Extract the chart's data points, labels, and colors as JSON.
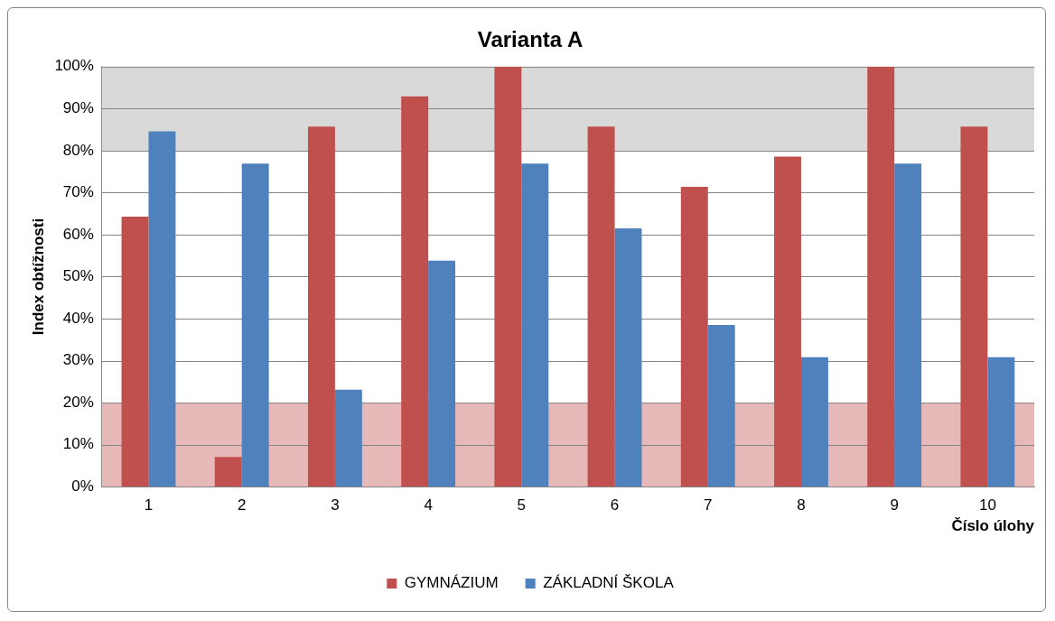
{
  "chart_data": {
    "type": "bar",
    "title": "Varianta A",
    "xlabel": "Číslo úlohy",
    "ylabel": "Index obtížnosti",
    "categories": [
      "1",
      "2",
      "3",
      "4",
      "5",
      "6",
      "7",
      "8",
      "9",
      "10"
    ],
    "series": [
      {
        "name": "GYMNÁZIUM",
        "color": "#c0504d",
        "values": [
          64.3,
          7.1,
          85.7,
          92.9,
          100,
          85.7,
          71.4,
          78.6,
          100,
          85.7
        ]
      },
      {
        "name": "ZÁKLADNÍ ŠKOLA",
        "color": "#4f81bd",
        "values": [
          84.6,
          76.9,
          23.1,
          53.8,
          76.9,
          61.5,
          38.5,
          30.8,
          76.9,
          30.8
        ]
      }
    ],
    "ylim": [
      0,
      100
    ],
    "yticks": [
      {
        "value": 0,
        "label": "0%"
      },
      {
        "value": 10,
        "label": "10%"
      },
      {
        "value": 20,
        "label": "20%"
      },
      {
        "value": 30,
        "label": "30%"
      },
      {
        "value": 40,
        "label": "40%"
      },
      {
        "value": 50,
        "label": "50%"
      },
      {
        "value": 60,
        "label": "60%"
      },
      {
        "value": 70,
        "label": "70%"
      },
      {
        "value": 80,
        "label": "80%"
      },
      {
        "value": 90,
        "label": "90%"
      },
      {
        "value": 100,
        "label": "100%"
      }
    ],
    "bands": [
      {
        "axis": "y",
        "from": 0,
        "to": 20,
        "color": "#e6b9b8"
      },
      {
        "axis": "y",
        "from": 80,
        "to": 100,
        "color": "#d9d9d9"
      }
    ],
    "grid": "y",
    "legend": "bottom"
  }
}
